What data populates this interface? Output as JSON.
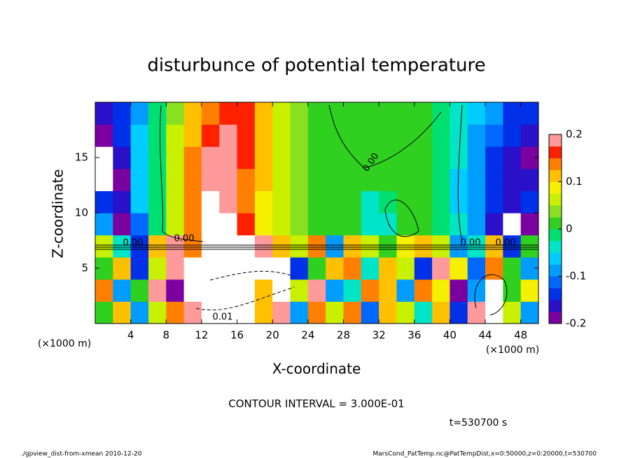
{
  "chart_data": {
    "type": "heatmap",
    "title": "disturbunce of potential temperature",
    "xlabel": "X-coordinate",
    "ylabel": "Z-coordinate",
    "x_unit_label": "(×1000 m)",
    "xlim": [
      0,
      50
    ],
    "ylim": [
      0,
      20
    ],
    "xticks": [
      4,
      8,
      12,
      16,
      20,
      24,
      28,
      32,
      36,
      40,
      44,
      48
    ],
    "yticks": [
      5,
      10,
      15
    ],
    "clim": [
      -0.2,
      0.2
    ],
    "colorbar_ticks": [
      -0.2,
      -0.1,
      0,
      0.1,
      0.2
    ],
    "colors": [
      "#7a00a0",
      "#2a10c8",
      "#0030e8",
      "#0068ff",
      "#009cff",
      "#00ccff",
      "#00e4c8",
      "#00e070",
      "#30d020",
      "#88e020",
      "#c8f000",
      "#f4f000",
      "#ffc000",
      "#ff8000",
      "#ff2000",
      "#ff9a9a"
    ],
    "over_color": "#ffffff",
    "z": [
      [
        0.0,
        0.1,
        -0.1,
        0.05,
        0.15,
        0.2,
        0.22,
        0.22,
        0.22,
        0.1,
        0.2,
        -0.1,
        0.15,
        0.05,
        0.15,
        -0.12,
        0.1,
        0.05,
        -0.05,
        0.1,
        -0.15,
        0.18,
        0.22,
        0.05,
        -0.1
      ],
      [
        0.15,
        -0.1,
        0.02,
        0.2,
        -0.18,
        0.22,
        0.22,
        0.22,
        0.22,
        0.1,
        0.22,
        0.05,
        0.18,
        -0.1,
        -0.03,
        0.15,
        0.1,
        -0.08,
        0.15,
        0.08,
        -0.18,
        -0.1,
        0.22,
        0.0,
        0.08
      ],
      [
        0.0,
        0.12,
        -0.15,
        0.05,
        0.2,
        0.22,
        0.22,
        0.22,
        0.22,
        0.22,
        0.22,
        -0.15,
        0.0,
        0.1,
        0.15,
        -0.05,
        0.12,
        0.05,
        -0.15,
        0.18,
        0.08,
        -0.12,
        0.15,
        0.0,
        -0.08
      ],
      [
        0.05,
        -0.05,
        -0.15,
        0.1,
        0.18,
        0.15,
        0.22,
        0.22,
        0.22,
        0.2,
        0.1,
        0.05,
        0.15,
        -0.1,
        0.1,
        0.05,
        0.02,
        0.08,
        0.1,
        0.05,
        -0.1,
        -0.05,
        0.1,
        -0.15,
        0.0
      ],
      [
        -0.1,
        -0.18,
        -0.12,
        -0.02,
        0.06,
        0.14,
        0.21,
        0.22,
        0.16,
        0.09,
        0.05,
        0.03,
        0.02,
        0.01,
        0.0,
        -0.03,
        -0.03,
        0.01,
        0.01,
        -0.02,
        -0.05,
        -0.1,
        -0.16,
        0.22,
        -0.18
      ],
      [
        -0.15,
        -0.17,
        -0.07,
        -0.01,
        0.07,
        0.15,
        0.21,
        0.2,
        0.15,
        0.09,
        0.05,
        0.03,
        0.02,
        0.01,
        0.0,
        -0.03,
        -0.02,
        0.01,
        0.01,
        -0.02,
        -0.06,
        -0.1,
        -0.14,
        -0.17,
        -0.15
      ],
      [
        0.22,
        -0.18,
        -0.06,
        -0.01,
        0.07,
        0.14,
        0.19,
        0.19,
        0.15,
        0.1,
        0.05,
        0.03,
        0.02,
        0.01,
        0.0,
        0.0,
        0.01,
        0.01,
        0.01,
        -0.02,
        -0.06,
        -0.1,
        -0.14,
        -0.17,
        -0.16
      ],
      [
        0.22,
        -0.17,
        -0.06,
        -0.01,
        0.06,
        0.13,
        0.18,
        0.19,
        0.16,
        0.11,
        0.06,
        0.03,
        0.02,
        0.01,
        0.0,
        0.0,
        0.01,
        0.01,
        0.01,
        -0.02,
        -0.05,
        -0.09,
        -0.13,
        -0.16,
        -0.18
      ],
      [
        -0.18,
        -0.15,
        -0.07,
        -0.02,
        0.05,
        0.11,
        0.16,
        0.18,
        0.17,
        0.12,
        0.07,
        0.04,
        0.02,
        0.01,
        0.01,
        0.0,
        0.01,
        0.01,
        0.0,
        -0.02,
        -0.05,
        -0.08,
        -0.12,
        -0.15,
        -0.17
      ],
      [
        -0.17,
        -0.15,
        -0.08,
        -0.02,
        0.04,
        0.1,
        0.15,
        0.17,
        0.17,
        0.12,
        0.07,
        0.04,
        0.02,
        0.01,
        0.01,
        0.01,
        0.01,
        0.01,
        0.0,
        -0.02,
        -0.04,
        -0.07,
        -0.1,
        -0.13,
        -0.15
      ]
    ],
    "contour_labels": [
      "0.00",
      "0.00",
      "0.00",
      "0.00",
      "0.00",
      "0.01"
    ],
    "contour_interval": "CONTOUR INTERVAL = 3.000E-01",
    "time_label": "t=530700 s",
    "footer_left": "./gpview_dist-from-xmean  2010-12-20",
    "footer_right": "MarsCond_PatTemp.nc@PatTempDist,x=0:50000,z=0:20000,t=530700"
  }
}
